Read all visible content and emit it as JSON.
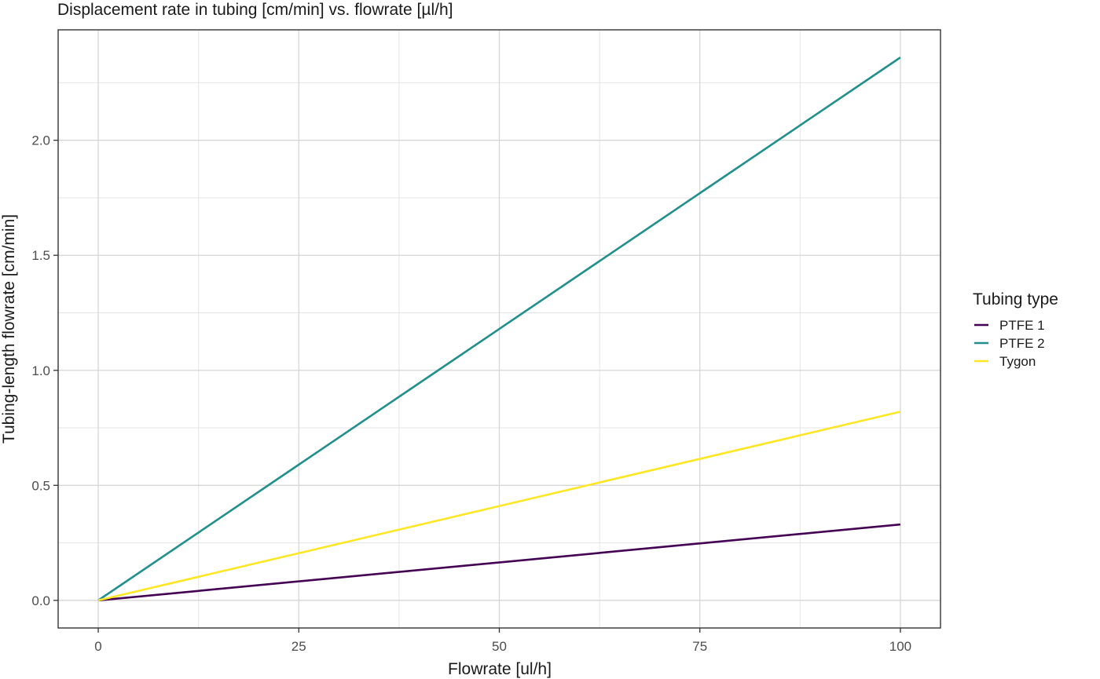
{
  "chart_data": {
    "type": "line",
    "title": "Displacement rate in tubing [cm/min] vs. flowrate [µl/h]",
    "xlabel": "Flowrate [ul/h]",
    "ylabel": "Tubing-length flowrate [cm/min]",
    "xlim": [
      -5,
      105
    ],
    "ylim": [
      -0.12,
      2.48
    ],
    "x_ticks": [
      0,
      25,
      50,
      75,
      100
    ],
    "x_tick_labels": [
      "0",
      "25",
      "50",
      "75",
      "100"
    ],
    "y_ticks": [
      0.0,
      0.5,
      1.0,
      1.5,
      2.0
    ],
    "y_tick_labels": [
      "0.0",
      "0.5",
      "1.0",
      "1.5",
      "2.0"
    ],
    "grid": true,
    "legend": {
      "title": "Tubing type",
      "position": "right"
    },
    "series": [
      {
        "name": "PTFE 1",
        "color": "#440154",
        "x": [
          0,
          100
        ],
        "y": [
          0,
          0.33
        ]
      },
      {
        "name": "PTFE 2",
        "color": "#21908C",
        "x": [
          0,
          100
        ],
        "y": [
          0,
          2.36
        ]
      },
      {
        "name": "Tygon",
        "color": "#FDE725",
        "x": [
          0,
          100
        ],
        "y": [
          0,
          0.82
        ]
      }
    ]
  }
}
